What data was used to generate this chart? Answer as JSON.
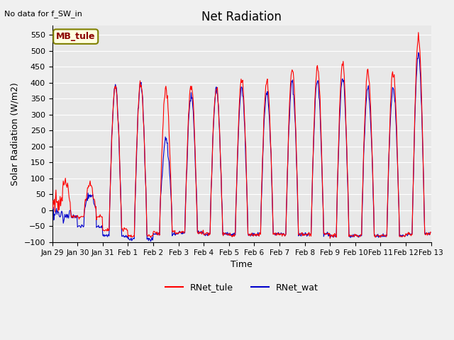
{
  "title": "Net Radiation",
  "subtitle": "No data for f_SW_in",
  "ylabel": "Solar Radiation (W/m2)",
  "xlabel": "Time",
  "legend_label1": "RNet_tule",
  "legend_label2": "RNet_wat",
  "station_label": "MB_tule",
  "color1": "#FF0000",
  "color2": "#0000CC",
  "ylim": [
    -100,
    580
  ],
  "yticks": [
    -100,
    -50,
    0,
    50,
    100,
    150,
    200,
    250,
    300,
    350,
    400,
    450,
    500,
    550
  ],
  "bg_color": "#E8E8E8",
  "grid_color": "#FFFFFF",
  "num_days": 15,
  "peaks_tule": [
    90,
    80,
    390,
    400,
    380,
    390,
    385,
    410,
    410,
    445,
    450,
    460,
    435,
    435,
    540
  ],
  "peaks_wat": [
    -20,
    50,
    390,
    400,
    220,
    360,
    380,
    380,
    370,
    405,
    405,
    415,
    385,
    380,
    490
  ],
  "night_tule": [
    -20,
    -20,
    -60,
    -80,
    -70,
    -70,
    -75,
    -75,
    -75,
    -75,
    -75,
    -80,
    -80,
    -80,
    -75
  ],
  "night_wat": [
    -20,
    -50,
    -80,
    -90,
    -75,
    -70,
    -75,
    -75,
    -75,
    -75,
    -75,
    -80,
    -80,
    -80,
    -75
  ],
  "xtick_labels": [
    "Jan 29",
    "Jan 30",
    "Jan 31",
    "Feb 1",
    "Feb 2",
    "Feb 3",
    "Feb 4",
    "Feb 5",
    "Feb 6",
    "Feb 7",
    "Feb 8",
    "Feb 9",
    "Feb 10",
    "Feb 11",
    "Feb 12",
    "Feb 13"
  ]
}
